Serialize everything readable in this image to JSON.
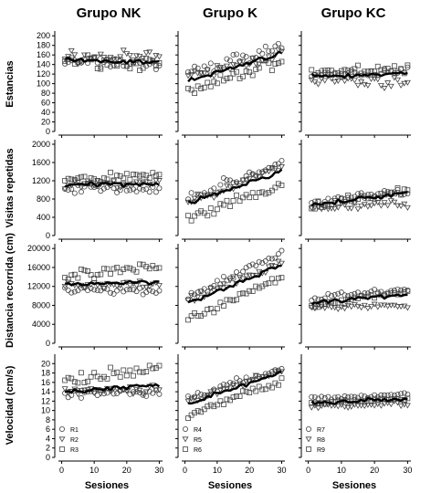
{
  "figure": {
    "columns": [
      "Grupo NK",
      "Grupo K",
      "Grupo KC"
    ],
    "x_axis": {
      "label": "Sesiones",
      "ticks": [
        0,
        10,
        20,
        30
      ],
      "range": [
        -1,
        31
      ]
    },
    "rows": [
      {
        "ylabel": "Estancias",
        "ylim": [
          0,
          210
        ],
        "ticks": [
          0,
          20,
          40,
          60,
          80,
          100,
          120,
          140,
          160,
          180,
          200
        ]
      },
      {
        "ylabel": "Visitas repetidas",
        "ylim": [
          0,
          2100
        ],
        "ticks": [
          0,
          400,
          800,
          1200,
          1600,
          2000
        ]
      },
      {
        "ylabel": "Distancia recorrida (cm)",
        "ylim": [
          0,
          21000
        ],
        "ticks": [
          0,
          4000,
          8000,
          12000,
          16000,
          20000
        ]
      },
      {
        "ylabel": "Velocidad (cm/s)",
        "ylim": [
          0,
          22
        ],
        "ticks": [
          0,
          2,
          4,
          6,
          8,
          10,
          12,
          14,
          16,
          18,
          20
        ]
      }
    ],
    "legends": [
      [
        {
          "name": "R1",
          "marker": "circle"
        },
        {
          "name": "R2",
          "marker": "triangle"
        },
        {
          "name": "R3",
          "marker": "square"
        }
      ],
      [
        {
          "name": "R4",
          "marker": "circle"
        },
        {
          "name": "R5",
          "marker": "triangle"
        },
        {
          "name": "R6",
          "marker": "square"
        }
      ],
      [
        {
          "name": "R7",
          "marker": "circle"
        },
        {
          "name": "R8",
          "marker": "triangle"
        },
        {
          "name": "R9",
          "marker": "square"
        }
      ]
    ]
  },
  "chart_data": [
    {
      "type": "scatter",
      "column": "Grupo NK",
      "row": "Estancias",
      "mean": {
        "start": 148,
        "end": 145
      },
      "series": [
        {
          "name": "R1",
          "marker": "circle",
          "start": 145,
          "end": 140,
          "spread": 18
        },
        {
          "name": "R2",
          "marker": "triangle",
          "start": 155,
          "end": 155,
          "spread": 18
        },
        {
          "name": "R3",
          "marker": "square",
          "start": 150,
          "end": 140,
          "spread": 18
        }
      ]
    },
    {
      "type": "scatter",
      "column": "Grupo NK",
      "row": "Visitas repetidas",
      "mean": {
        "start": 1100,
        "end": 1150
      },
      "series": [
        {
          "name": "R1",
          "marker": "circle",
          "start": 1050,
          "end": 1000,
          "spread": 150
        },
        {
          "name": "R2",
          "marker": "triangle",
          "start": 1100,
          "end": 1150,
          "spread": 150
        },
        {
          "name": "R3",
          "marker": "square",
          "start": 1200,
          "end": 1350,
          "spread": 180
        }
      ]
    },
    {
      "type": "scatter",
      "column": "Grupo NK",
      "row": "Distancia recorrida (cm)",
      "mean": {
        "start": 12500,
        "end": 13000
      },
      "series": [
        {
          "name": "R1",
          "marker": "circle",
          "start": 11500,
          "end": 11000,
          "spread": 1200
        },
        {
          "name": "R2",
          "marker": "triangle",
          "start": 12500,
          "end": 12000,
          "spread": 1200
        },
        {
          "name": "R3",
          "marker": "square",
          "start": 14000,
          "end": 16000,
          "spread": 1800
        }
      ]
    },
    {
      "type": "scatter",
      "column": "Grupo NK",
      "row": "Velocidad (cm/s)",
      "mean": {
        "start": 14,
        "end": 15.5
      },
      "series": [
        {
          "name": "R1",
          "marker": "circle",
          "start": 13.5,
          "end": 14,
          "spread": 1.2
        },
        {
          "name": "R2",
          "marker": "triangle",
          "start": 14,
          "end": 14.5,
          "spread": 1.2
        },
        {
          "name": "R3",
          "marker": "square",
          "start": 16,
          "end": 19,
          "spread": 2
        }
      ]
    },
    {
      "type": "scatter",
      "column": "Grupo K",
      "row": "Estancias",
      "mean": {
        "start": 105,
        "end": 165
      },
      "series": [
        {
          "name": "R4",
          "marker": "circle",
          "start": 120,
          "end": 180,
          "spread": 20
        },
        {
          "name": "R5",
          "marker": "triangle",
          "start": 110,
          "end": 165,
          "spread": 20
        },
        {
          "name": "R6",
          "marker": "square",
          "start": 80,
          "end": 150,
          "spread": 20
        }
      ]
    },
    {
      "type": "scatter",
      "column": "Grupo K",
      "row": "Visitas repetidas",
      "mean": {
        "start": 700,
        "end": 1400
      },
      "series": [
        {
          "name": "R4",
          "marker": "circle",
          "start": 800,
          "end": 1600,
          "spread": 180
        },
        {
          "name": "R5",
          "marker": "triangle",
          "start": 700,
          "end": 1500,
          "spread": 180
        },
        {
          "name": "R6",
          "marker": "square",
          "start": 350,
          "end": 1100,
          "spread": 180
        }
      ]
    },
    {
      "type": "scatter",
      "column": "Grupo K",
      "row": "Distancia recorrida (cm)",
      "mean": {
        "start": 8500,
        "end": 16500
      },
      "series": [
        {
          "name": "R4",
          "marker": "circle",
          "start": 10000,
          "end": 19000,
          "spread": 1300
        },
        {
          "name": "R5",
          "marker": "triangle",
          "start": 9000,
          "end": 17000,
          "spread": 1300
        },
        {
          "name": "R6",
          "marker": "square",
          "start": 5000,
          "end": 14000,
          "spread": 1300
        }
      ]
    },
    {
      "type": "scatter",
      "column": "Grupo K",
      "row": "Velocidad (cm/s)",
      "mean": {
        "start": 11.5,
        "end": 18
      },
      "series": [
        {
          "name": "R4",
          "marker": "circle",
          "start": 12.5,
          "end": 19,
          "spread": 1.2
        },
        {
          "name": "R5",
          "marker": "triangle",
          "start": 12,
          "end": 18.5,
          "spread": 1.2
        },
        {
          "name": "R6",
          "marker": "square",
          "start": 9,
          "end": 16.5,
          "spread": 1.2
        }
      ]
    },
    {
      "type": "scatter",
      "column": "Grupo KC",
      "row": "Estancias",
      "mean": {
        "start": 115,
        "end": 120
      },
      "series": [
        {
          "name": "R7",
          "marker": "circle",
          "start": 115,
          "end": 130,
          "spread": 14
        },
        {
          "name": "R8",
          "marker": "triangle",
          "start": 110,
          "end": 100,
          "spread": 14
        },
        {
          "name": "R9",
          "marker": "square",
          "start": 125,
          "end": 130,
          "spread": 14
        }
      ]
    },
    {
      "type": "scatter",
      "column": "Grupo KC",
      "row": "Visitas repetidas",
      "mean": {
        "start": 650,
        "end": 950
      },
      "series": [
        {
          "name": "R7",
          "marker": "circle",
          "start": 750,
          "end": 950,
          "spread": 130
        },
        {
          "name": "R8",
          "marker": "triangle",
          "start": 600,
          "end": 700,
          "spread": 130
        },
        {
          "name": "R9",
          "marker": "square",
          "start": 650,
          "end": 1000,
          "spread": 130
        }
      ]
    },
    {
      "type": "scatter",
      "column": "Grupo KC",
      "row": "Distancia recorrida (cm)",
      "mean": {
        "start": 8500,
        "end": 10500
      },
      "series": [
        {
          "name": "R7",
          "marker": "circle",
          "start": 9500,
          "end": 11500,
          "spread": 900
        },
        {
          "name": "R8",
          "marker": "triangle",
          "start": 7500,
          "end": 8000,
          "spread": 900
        },
        {
          "name": "R9",
          "marker": "square",
          "start": 8000,
          "end": 11000,
          "spread": 900
        }
      ]
    },
    {
      "type": "scatter",
      "column": "Grupo KC",
      "row": "Velocidad (cm/s)",
      "mean": {
        "start": 11.5,
        "end": 12.5
      },
      "series": [
        {
          "name": "R7",
          "marker": "circle",
          "start": 12.5,
          "end": 13.5,
          "spread": 0.8
        },
        {
          "name": "R8",
          "marker": "triangle",
          "start": 11,
          "end": 11.5,
          "spread": 0.8
        },
        {
          "name": "R9",
          "marker": "square",
          "start": 11.5,
          "end": 12.5,
          "spread": 0.8
        }
      ]
    }
  ]
}
